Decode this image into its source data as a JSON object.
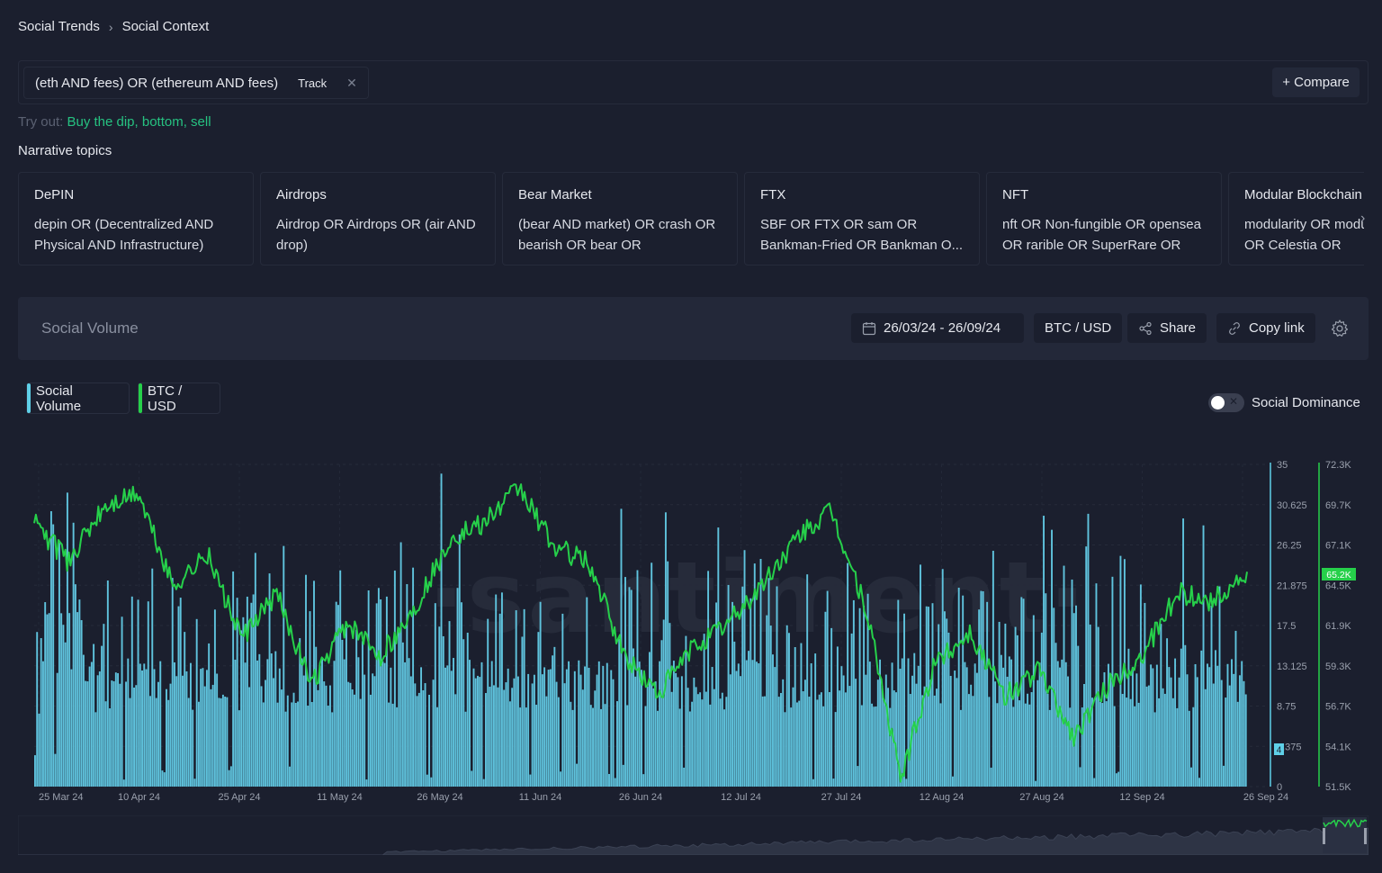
{
  "breadcrumb": {
    "items": [
      "Social Trends",
      "Social Context"
    ]
  },
  "search": {
    "query": "(eth AND fees) OR (ethereum AND fees)",
    "track_label": "Track",
    "compare_label": "+ Compare"
  },
  "tryout": {
    "label": "Try out:",
    "suggestion": "Buy the dip, bottom, sell"
  },
  "narrative": {
    "title": "Narrative topics",
    "topics": [
      {
        "title": "DePIN",
        "query": "depin OR (Decentralized AND Physical AND Infrastructure) OR..."
      },
      {
        "title": "Airdrops",
        "query": "Airdrop OR Airdrops OR (air AND drop)"
      },
      {
        "title": "Bear Market",
        "query": "(bear AND market) OR crash OR bearish OR bear OR bearmarket..."
      },
      {
        "title": "FTX",
        "query": "SBF OR FTX OR sam OR Bankman-Fried OR Bankman O..."
      },
      {
        "title": "NFT",
        "query": "nft OR Non-fungible OR opensea OR rarible OR SuperRare OR bl..."
      },
      {
        "title": "Modular Blockchain",
        "query": "modularity OR modular OR fuel OR Celestia OR"
      }
    ]
  },
  "panel": {
    "title": "Social Volume",
    "date_range": "26/03/24 - 26/09/24",
    "pair": "BTC / USD",
    "share_label": "Share",
    "copy_label": "Copy link"
  },
  "metrics": [
    {
      "label": "Social Volume",
      "color": "#5fd0e8"
    },
    {
      "label": "BTC / USD",
      "color": "#26d04a"
    }
  ],
  "dominance": {
    "label": "Social Dominance",
    "enabled": false
  },
  "watermark": "·santiment·",
  "chart_data": {
    "type": "bar",
    "x_ticks": [
      "25 Mar 24",
      "10 Apr 24",
      "25 Apr 24",
      "11 May 24",
      "26 May 24",
      "11 Jun 24",
      "26 Jun 24",
      "12 Jul 24",
      "27 Jul 24",
      "12 Aug 24",
      "27 Aug 24",
      "12 Sep 24",
      "26 Sep 24"
    ],
    "series": [
      {
        "name": "Social Volume",
        "type": "bar",
        "color": "#5fd0e8",
        "axis": "left",
        "ylim": [
          0,
          35
        ],
        "last_value": "4"
      },
      {
        "name": "BTC / USD",
        "type": "line",
        "color": "#26d04a",
        "axis": "right",
        "ylim": [
          51500,
          72300
        ],
        "last_value": "65.2K"
      }
    ],
    "left_ticks": [
      "35",
      "30.625",
      "26.25",
      "21.875",
      "17.5",
      "13.125",
      "8.75",
      "4.375",
      "0"
    ],
    "right_ticks": [
      "72.3K",
      "69.7K",
      "67.1K",
      "64.5K",
      "61.9K",
      "59.3K",
      "56.7K",
      "54.1K",
      "51.5K"
    ],
    "btc_anchor_values": [
      68500,
      66000,
      69500,
      70500,
      64500,
      66500,
      61000,
      64000,
      58000,
      62000,
      60000,
      63000,
      67500,
      68500,
      70800,
      67000,
      66000,
      60000,
      57500,
      60500,
      62000,
      64500,
      67500,
      69300,
      63000,
      52000,
      59500,
      61500,
      57300,
      59000,
      54700,
      58000,
      60000,
      64000,
      63500,
      65200
    ]
  }
}
